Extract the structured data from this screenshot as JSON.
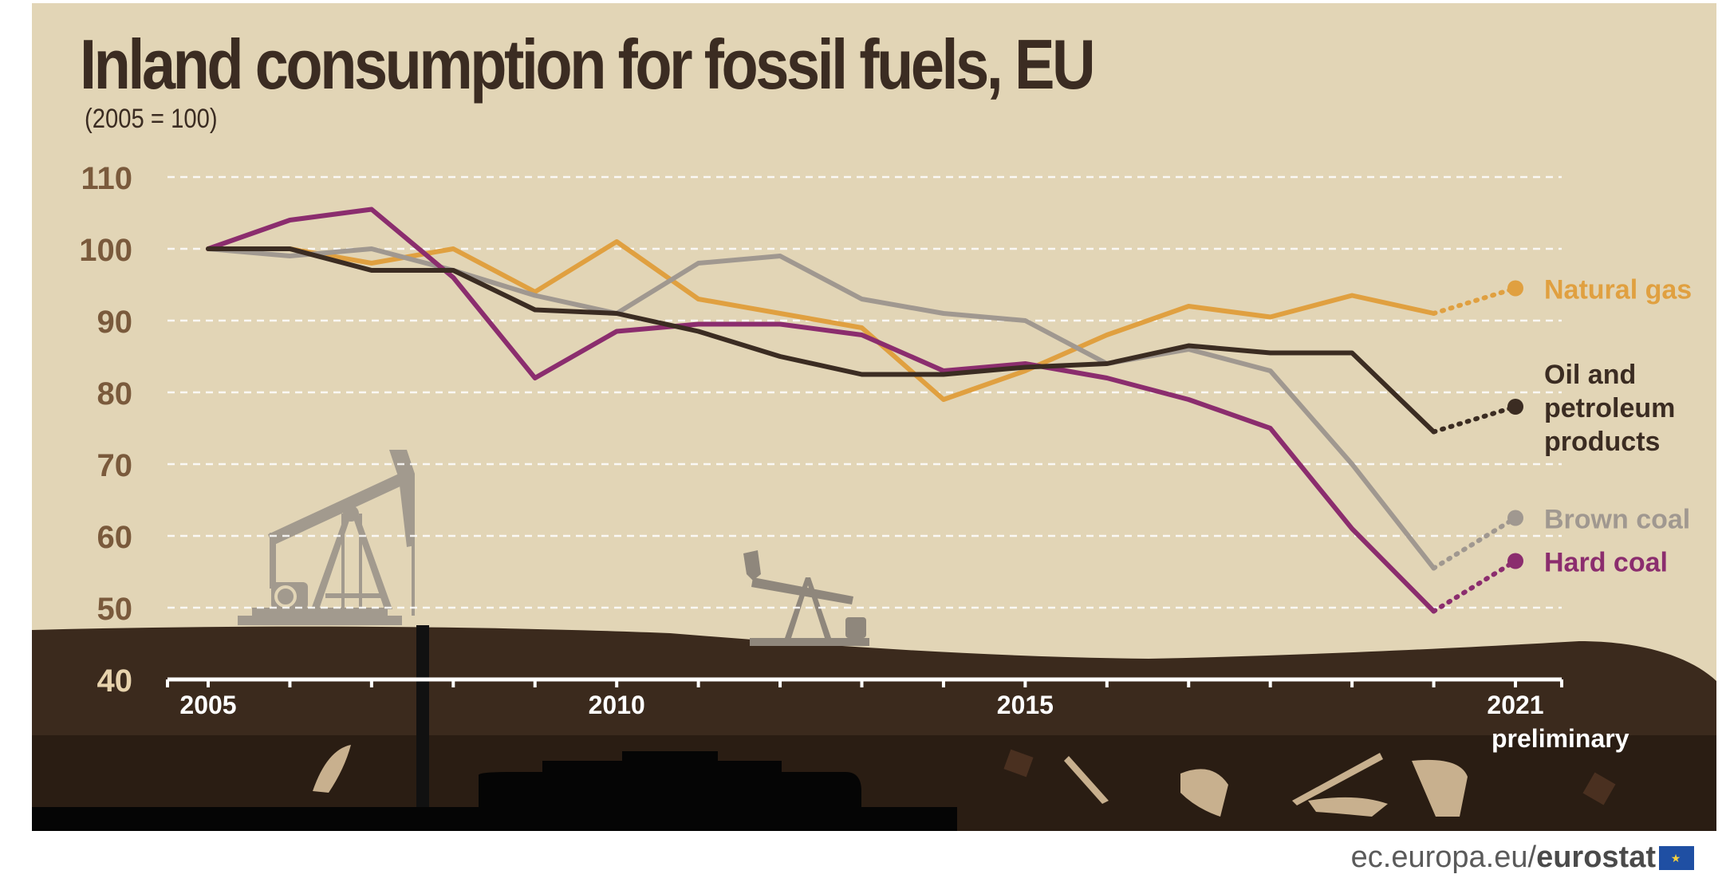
{
  "chart_data": {
    "type": "line",
    "title": "Inland consumption for fossil fuels, EU",
    "subtitle": "(2005 = 100)",
    "xlabel": "",
    "ylabel": "",
    "x": [
      2005,
      2006,
      2007,
      2008,
      2009,
      2010,
      2011,
      2012,
      2013,
      2014,
      2015,
      2016,
      2017,
      2018,
      2019,
      2020,
      2021
    ],
    "xticks": [
      {
        "x": 2005,
        "label": "2005"
      },
      {
        "x": 2010,
        "label": "2010"
      },
      {
        "x": 2015,
        "label": "2015"
      },
      {
        "x": 2021,
        "label": "2021",
        "sublabel": "preliminary"
      }
    ],
    "yticks": [
      40,
      50,
      60,
      70,
      80,
      90,
      100,
      110
    ],
    "ylim": [
      40,
      110
    ],
    "grid": true,
    "preliminary_from": 2020,
    "series": [
      {
        "name": "Natural gas",
        "label_lines": [
          "Natural gas"
        ],
        "color": "#e0a040",
        "values": [
          100,
          100,
          98,
          100,
          94,
          101,
          93,
          91,
          89,
          79,
          83,
          88,
          92,
          90.5,
          93.5,
          91,
          94.5
        ]
      },
      {
        "name": "Brown coal",
        "label_lines": [
          "Brown coal"
        ],
        "color": "#a09890",
        "values": [
          100,
          99,
          100,
          97,
          93.5,
          91,
          98,
          99,
          93,
          91,
          90,
          84,
          86,
          83,
          70,
          55.5,
          62.5
        ]
      },
      {
        "name": "Hard coal",
        "label_lines": [
          "Hard coal"
        ],
        "color": "#8b2d6e",
        "values": [
          100,
          104,
          105.5,
          96,
          82,
          88.5,
          89.5,
          89.5,
          88,
          83,
          84,
          82,
          79,
          75,
          61,
          49.5,
          56.5
        ]
      },
      {
        "name": "Oil and petroleum products",
        "label_lines": [
          "Oil and",
          "petroleum",
          "products"
        ],
        "color": "#3b2c22",
        "values": [
          100,
          100,
          97,
          97,
          91.5,
          91,
          88.5,
          85,
          82.5,
          82.5,
          83.5,
          84,
          86.5,
          85.5,
          85.5,
          74.5,
          78
        ]
      }
    ]
  },
  "footer": {
    "site": "ec.europa.eu/",
    "brand": "eurostat"
  }
}
